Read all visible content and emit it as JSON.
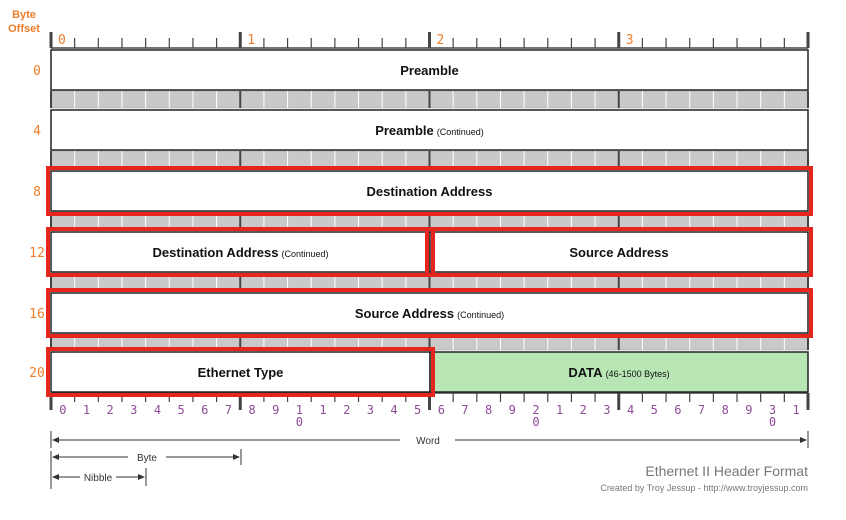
{
  "header": {
    "byte_offset_label_line1": "Byte",
    "byte_offset_label_line2": "Offset",
    "column_byte_labels": [
      "0",
      "1",
      "2",
      "3"
    ]
  },
  "rows": [
    {
      "offset": "0",
      "fields": [
        {
          "label": "Preamble",
          "note": "",
          "highlighted": false,
          "fill": "#ffffff",
          "span": "full"
        }
      ]
    },
    {
      "offset": "4",
      "fields": [
        {
          "label": "Preamble",
          "note": "(Continued)",
          "highlighted": false,
          "fill": "#ffffff",
          "span": "full"
        }
      ]
    },
    {
      "offset": "8",
      "fields": [
        {
          "label": "Destination Address",
          "note": "",
          "highlighted": true,
          "fill": "#ffffff",
          "span": "full"
        }
      ]
    },
    {
      "offset": "12",
      "fields": [
        {
          "label": "Destination Address",
          "note": "(Continued)",
          "highlighted": true,
          "fill": "#ffffff",
          "span": "left"
        },
        {
          "label": "Source Address",
          "note": "",
          "highlighted": true,
          "fill": "#ffffff",
          "span": "right"
        }
      ]
    },
    {
      "offset": "16",
      "fields": [
        {
          "label": "Source Address",
          "note": "(Continued)",
          "highlighted": true,
          "fill": "#ffffff",
          "span": "full"
        }
      ]
    },
    {
      "offset": "20",
      "fields": [
        {
          "label": "Ethernet Type",
          "note": "",
          "highlighted": true,
          "fill": "#ffffff",
          "span": "left"
        },
        {
          "label": "DATA",
          "note": "(46-1500 Bytes)",
          "highlighted": false,
          "fill": "#b9e6b5",
          "span": "right"
        }
      ]
    }
  ],
  "bit_labels": [
    "0",
    "1",
    "2",
    "3",
    "4",
    "5",
    "6",
    "7",
    "8",
    "9",
    "1\n0",
    "1",
    "2",
    "3",
    "4",
    "5",
    "6",
    "7",
    "8",
    "9",
    "2\n0",
    "1",
    "2",
    "3",
    "4",
    "5",
    "6",
    "7",
    "8",
    "9",
    "3\n0",
    "1"
  ],
  "legend": {
    "word": "Word",
    "byte": "Byte",
    "nibble": "Nibble"
  },
  "footer": {
    "title": "Ethernet II Header Format",
    "credit": "Created by Troy Jessup - http://www.troyjessup.com"
  },
  "colors": {
    "offset_orange": "#ee7e2c",
    "bit_purple": "#8e4b97",
    "highlight_red": "#e5251e",
    "data_green": "#b9e6b5"
  }
}
